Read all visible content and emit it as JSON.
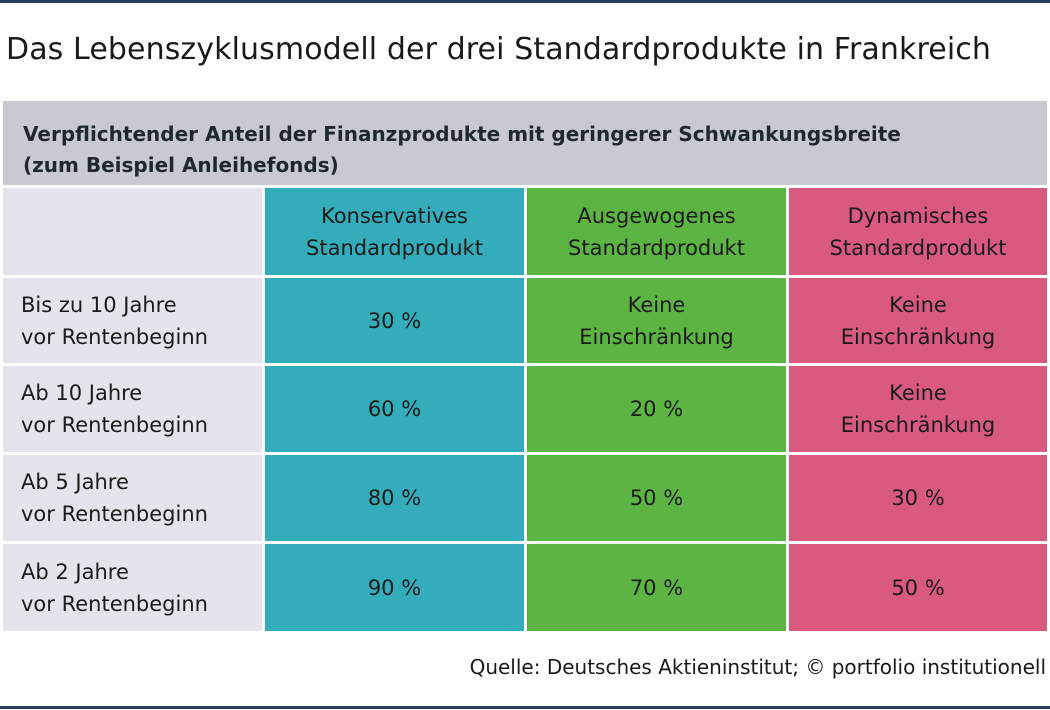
{
  "title": "Das Lebenszyklusmodell der drei Standardprodukte in Frankreich",
  "header": {
    "line1": "Verpflichtender Anteil der Finanzprodukte mit geringerer Schwankungsbreite",
    "line2": "(zum Beispiel Anleihefonds)"
  },
  "columns": [
    {
      "line1": "Konservatives",
      "line2": "Standardprodukt"
    },
    {
      "line1": "Ausgewogenes",
      "line2": "Standardprodukt"
    },
    {
      "line1": "Dynamisches",
      "line2": "Standardprodukt"
    }
  ],
  "rows": [
    {
      "label": {
        "line1": "Bis zu 10 Jahre",
        "line2": "vor Rentenbeginn"
      },
      "cells": [
        {
          "line1": "30 %",
          "line2": ""
        },
        {
          "line1": "Keine",
          "line2": "Einschränkung"
        },
        {
          "line1": "Keine",
          "line2": "Einschränkung"
        }
      ]
    },
    {
      "label": {
        "line1": "Ab 10 Jahre",
        "line2": "vor Rentenbeginn"
      },
      "cells": [
        {
          "line1": "60 %",
          "line2": ""
        },
        {
          "line1": "20 %",
          "line2": ""
        },
        {
          "line1": "Keine",
          "line2": "Einschränkung"
        }
      ]
    },
    {
      "label": {
        "line1": "Ab 5 Jahre",
        "line2": "vor Rentenbeginn"
      },
      "cells": [
        {
          "line1": "80 %",
          "line2": ""
        },
        {
          "line1": "50 %",
          "line2": ""
        },
        {
          "line1": "30 %",
          "line2": ""
        }
      ]
    },
    {
      "label": {
        "line1": "Ab 2 Jahre",
        "line2": "vor Rentenbeginn"
      },
      "cells": [
        {
          "line1": "90 %",
          "line2": ""
        },
        {
          "line1": "70 %",
          "line2": ""
        },
        {
          "line1": "50 %",
          "line2": ""
        }
      ]
    }
  ],
  "source": "Quelle: Deutsches Aktieninstitut; © portfolio institutionell",
  "colors": {
    "konservativ": "#33adbb",
    "ausgewogen": "#5cb543",
    "dynamisch": "#d9597f",
    "header": "#c9c9d2",
    "label_cells": "#e5e4ec",
    "rule": "#2a3f5c"
  }
}
